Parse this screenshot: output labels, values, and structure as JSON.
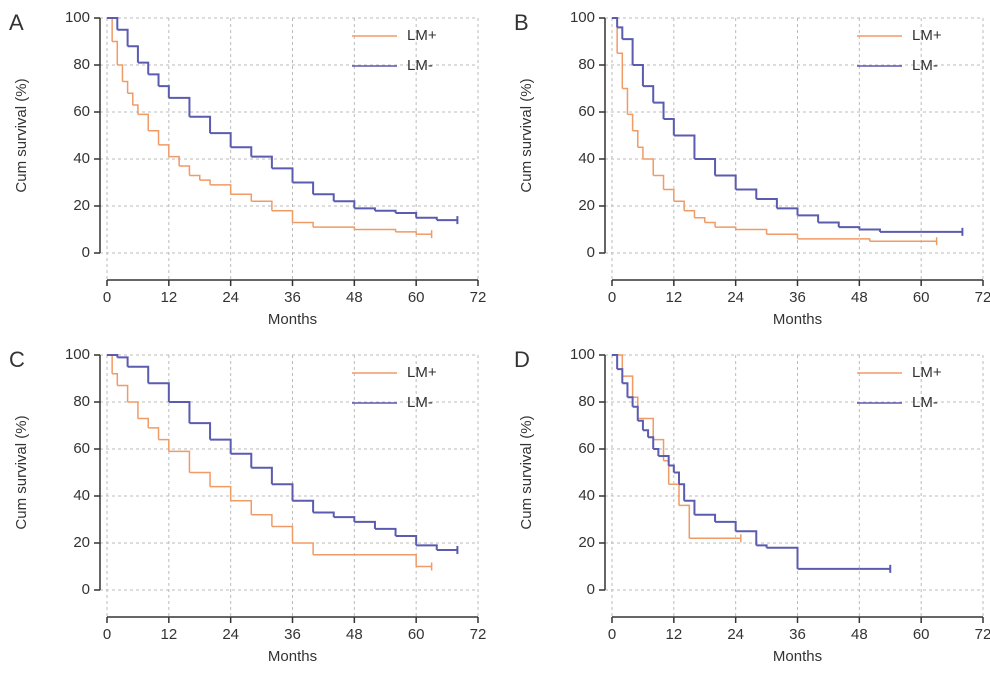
{
  "chart_data": [
    {
      "type": "line",
      "panel": "A",
      "ylabel": "Cum survival (%)",
      "xlabel": "Months",
      "xlim": [
        0,
        72
      ],
      "ylim": [
        0,
        100
      ],
      "xticks": [
        0,
        12,
        24,
        36,
        48,
        60,
        72
      ],
      "yticks": [
        0,
        20,
        40,
        60,
        80,
        100
      ],
      "grid": true,
      "step": true,
      "legend": "upper right",
      "series": [
        {
          "name": "LM+",
          "color": "#f09a66",
          "x": [
            0,
            1,
            2,
            3,
            4,
            5,
            6,
            8,
            10,
            12,
            14,
            16,
            18,
            20,
            24,
            28,
            32,
            36,
            40,
            48,
            56,
            60,
            63
          ],
          "values": [
            100,
            90,
            80,
            73,
            68,
            63,
            59,
            52,
            46,
            41,
            37,
            33,
            31,
            29,
            25,
            22,
            18,
            13,
            11,
            10,
            9,
            8,
            8
          ]
        },
        {
          "name": "LM-",
          "color": "#5b5bb0",
          "x": [
            0,
            2,
            4,
            6,
            8,
            10,
            12,
            16,
            20,
            24,
            28,
            32,
            36,
            40,
            44,
            48,
            52,
            56,
            60,
            64,
            68
          ],
          "values": [
            100,
            95,
            88,
            81,
            76,
            71,
            66,
            58,
            51,
            45,
            41,
            36,
            30,
            25,
            22,
            19,
            18,
            17,
            15,
            14,
            14
          ]
        }
      ]
    },
    {
      "type": "line",
      "panel": "B",
      "ylabel": "Cum survival (%)",
      "xlabel": "Months",
      "xlim": [
        0,
        72
      ],
      "ylim": [
        0,
        100
      ],
      "xticks": [
        0,
        12,
        24,
        36,
        48,
        60,
        72
      ],
      "yticks": [
        0,
        20,
        40,
        60,
        80,
        100
      ],
      "grid": true,
      "step": true,
      "legend": "upper right",
      "series": [
        {
          "name": "LM+",
          "color": "#f09a66",
          "x": [
            0,
            1,
            2,
            3,
            4,
            5,
            6,
            8,
            10,
            12,
            14,
            16,
            18,
            20,
            24,
            30,
            36,
            48,
            50,
            60,
            63
          ],
          "values": [
            100,
            85,
            70,
            59,
            52,
            45,
            40,
            33,
            27,
            22,
            18,
            15,
            13,
            11,
            10,
            8,
            6,
            6,
            5,
            5,
            5
          ]
        },
        {
          "name": "LM-",
          "color": "#5b5bb0",
          "x": [
            0,
            1,
            2,
            4,
            6,
            8,
            10,
            12,
            16,
            20,
            24,
            28,
            32,
            36,
            40,
            44,
            48,
            52,
            60,
            68
          ],
          "values": [
            100,
            96,
            91,
            80,
            71,
            64,
            57,
            50,
            40,
            33,
            27,
            23,
            19,
            16,
            13,
            11,
            10,
            9,
            9,
            9
          ]
        }
      ]
    },
    {
      "type": "line",
      "panel": "C",
      "ylabel": "Cum survival (%)",
      "xlabel": "Months",
      "xlim": [
        0,
        72
      ],
      "ylim": [
        0,
        100
      ],
      "xticks": [
        0,
        12,
        24,
        36,
        48,
        60,
        72
      ],
      "yticks": [
        0,
        20,
        40,
        60,
        80,
        100
      ],
      "grid": true,
      "step": true,
      "legend": "upper right",
      "series": [
        {
          "name": "LM+",
          "color": "#f09a66",
          "x": [
            0,
            1,
            2,
            4,
            6,
            8,
            10,
            12,
            16,
            20,
            24,
            28,
            32,
            36,
            40,
            48,
            56,
            60,
            63
          ],
          "values": [
            100,
            92,
            87,
            80,
            73,
            69,
            64,
            59,
            50,
            44,
            38,
            32,
            27,
            20,
            15,
            15,
            15,
            10,
            10
          ]
        },
        {
          "name": "LM-",
          "color": "#5b5bb0",
          "x": [
            0,
            2,
            4,
            8,
            12,
            16,
            20,
            24,
            28,
            32,
            36,
            40,
            44,
            48,
            52,
            56,
            60,
            64,
            68
          ],
          "values": [
            100,
            99,
            95,
            88,
            80,
            71,
            64,
            58,
            52,
            45,
            38,
            33,
            31,
            29,
            26,
            23,
            19,
            17,
            17
          ]
        }
      ]
    },
    {
      "type": "line",
      "panel": "D",
      "ylabel": "Cum survival (%)",
      "xlabel": "Months",
      "xlim": [
        0,
        72
      ],
      "ylim": [
        0,
        100
      ],
      "xticks": [
        0,
        12,
        24,
        36,
        48,
        60,
        72
      ],
      "yticks": [
        0,
        20,
        40,
        60,
        80,
        100
      ],
      "grid": true,
      "step": true,
      "legend": "upper right",
      "series": [
        {
          "name": "LM+",
          "color": "#f09a66",
          "x": [
            0,
            1,
            2,
            3,
            4,
            5,
            6,
            8,
            10,
            11,
            12,
            13,
            14,
            15,
            24,
            25
          ],
          "values": [
            100,
            100,
            91,
            91,
            82,
            73,
            73,
            64,
            55,
            45,
            45,
            36,
            36,
            22,
            22,
            22
          ]
        },
        {
          "name": "LM-",
          "color": "#5b5bb0",
          "x": [
            0,
            1,
            2,
            3,
            4,
            5,
            6,
            7,
            8,
            9,
            10,
            11,
            12,
            13,
            14,
            16,
            20,
            24,
            28,
            30,
            36,
            48,
            54
          ],
          "values": [
            100,
            94,
            88,
            82,
            78,
            72,
            68,
            65,
            60,
            57,
            57,
            53,
            50,
            45,
            38,
            32,
            29,
            25,
            19,
            18,
            9,
            9,
            9
          ]
        }
      ]
    }
  ]
}
